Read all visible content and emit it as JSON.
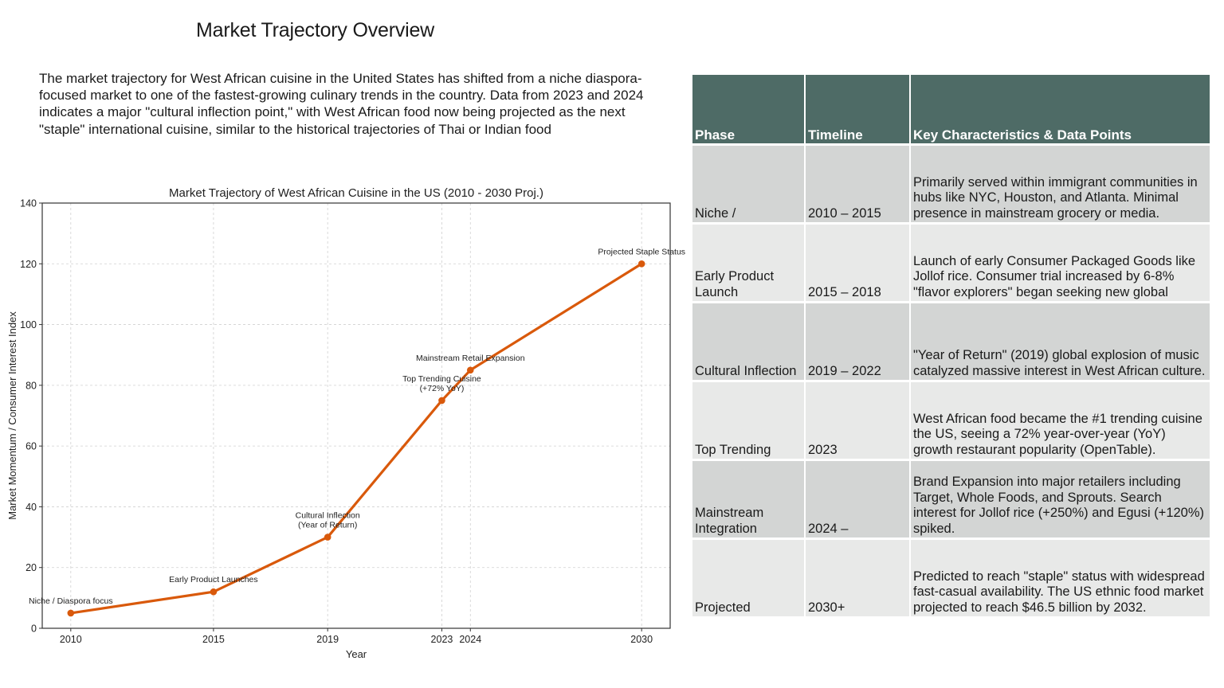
{
  "page": {
    "title": "Market Trajectory Overview",
    "intro": "The market trajectory for West African cuisine in the United States has shifted from a niche diaspora-focused market to one of the fastest-growing culinary trends in the country. Data from 2023 and 2024 indicates a major \"cultural inflection point,\" with West African food now being projected as the next \"staple\" international cuisine, similar to the historical trajectories of Thai or Indian food"
  },
  "chart_data": {
    "type": "line",
    "title": "Market Trajectory of West African Cuisine in the US (2010 - 2030 Proj.)",
    "xlabel": "Year",
    "ylabel": "Market Momentum / Consumer Interest Index",
    "x": [
      2010,
      2015,
      2019,
      2023,
      2024,
      2030
    ],
    "x_tick_labels": [
      "2010",
      "2015",
      "2019",
      "2023",
      "2024",
      "2030"
    ],
    "y_ticks": [
      0,
      20,
      40,
      60,
      80,
      100,
      120,
      140
    ],
    "xlim": [
      2009,
      2031
    ],
    "ylim": [
      0,
      140
    ],
    "grid": true,
    "legend": "none",
    "series": [
      {
        "name": "Market Momentum",
        "color": "#d9590b",
        "values": [
          5,
          12,
          30,
          75,
          85,
          120
        ]
      }
    ],
    "annotations": [
      {
        "x": 2010,
        "y": 5,
        "lines": [
          "Niche / Diaspora focus"
        ]
      },
      {
        "x": 2015,
        "y": 12,
        "lines": [
          "Early Product Launches"
        ]
      },
      {
        "x": 2019,
        "y": 30,
        "lines": [
          "Cultural Inflection",
          "(Year of Return)"
        ]
      },
      {
        "x": 2023,
        "y": 75,
        "lines": [
          "Top Trending Cuisine",
          "(+72% YoY)"
        ]
      },
      {
        "x": 2024,
        "y": 85,
        "lines": [
          "Mainstream Retail Expansion"
        ]
      },
      {
        "x": 2030,
        "y": 120,
        "lines": [
          "Projected Staple Status"
        ]
      }
    ]
  },
  "table": {
    "headers": [
      "Phase",
      "Timeline",
      "Key Characteristics & Data Points"
    ],
    "header_color": "#4e6b66",
    "rows": [
      {
        "phase": "Niche /",
        "timeline": "2010 – 2015",
        "details": "Primarily served within immigrant communities in hubs like NYC, Houston, and Atlanta. Minimal presence in mainstream grocery or media."
      },
      {
        "phase": "Early Product Launch",
        "timeline": "2015 – 2018",
        "details": "Launch of early Consumer Packaged Goods like Jollof rice. Consumer trial increased by 6-8% \"flavor explorers\" began seeking new global"
      },
      {
        "phase": "Cultural Inflection",
        "timeline": "2019 – 2022",
        "details": "\"Year of Return\" (2019) global explosion of music catalyzed massive interest in West African culture."
      },
      {
        "phase": "Top Trending",
        "timeline": "2023",
        "details": "West African food became the #1 trending cuisine the US, seeing a 72% year-over-year (YoY) growth restaurant popularity (OpenTable)."
      },
      {
        "phase": "Mainstream Integration",
        "timeline": "2024 –",
        "details": "Brand Expansion into major retailers including Target, Whole Foods, and Sprouts. Search interest for Jollof rice (+250%) and Egusi (+120%) spiked."
      },
      {
        "phase": "Projected",
        "timeline": "2030+",
        "details": "Predicted to reach \"staple\" status with widespread fast-casual availability. The US ethnic food market projected to reach $46.5 billion by 2032."
      }
    ]
  }
}
